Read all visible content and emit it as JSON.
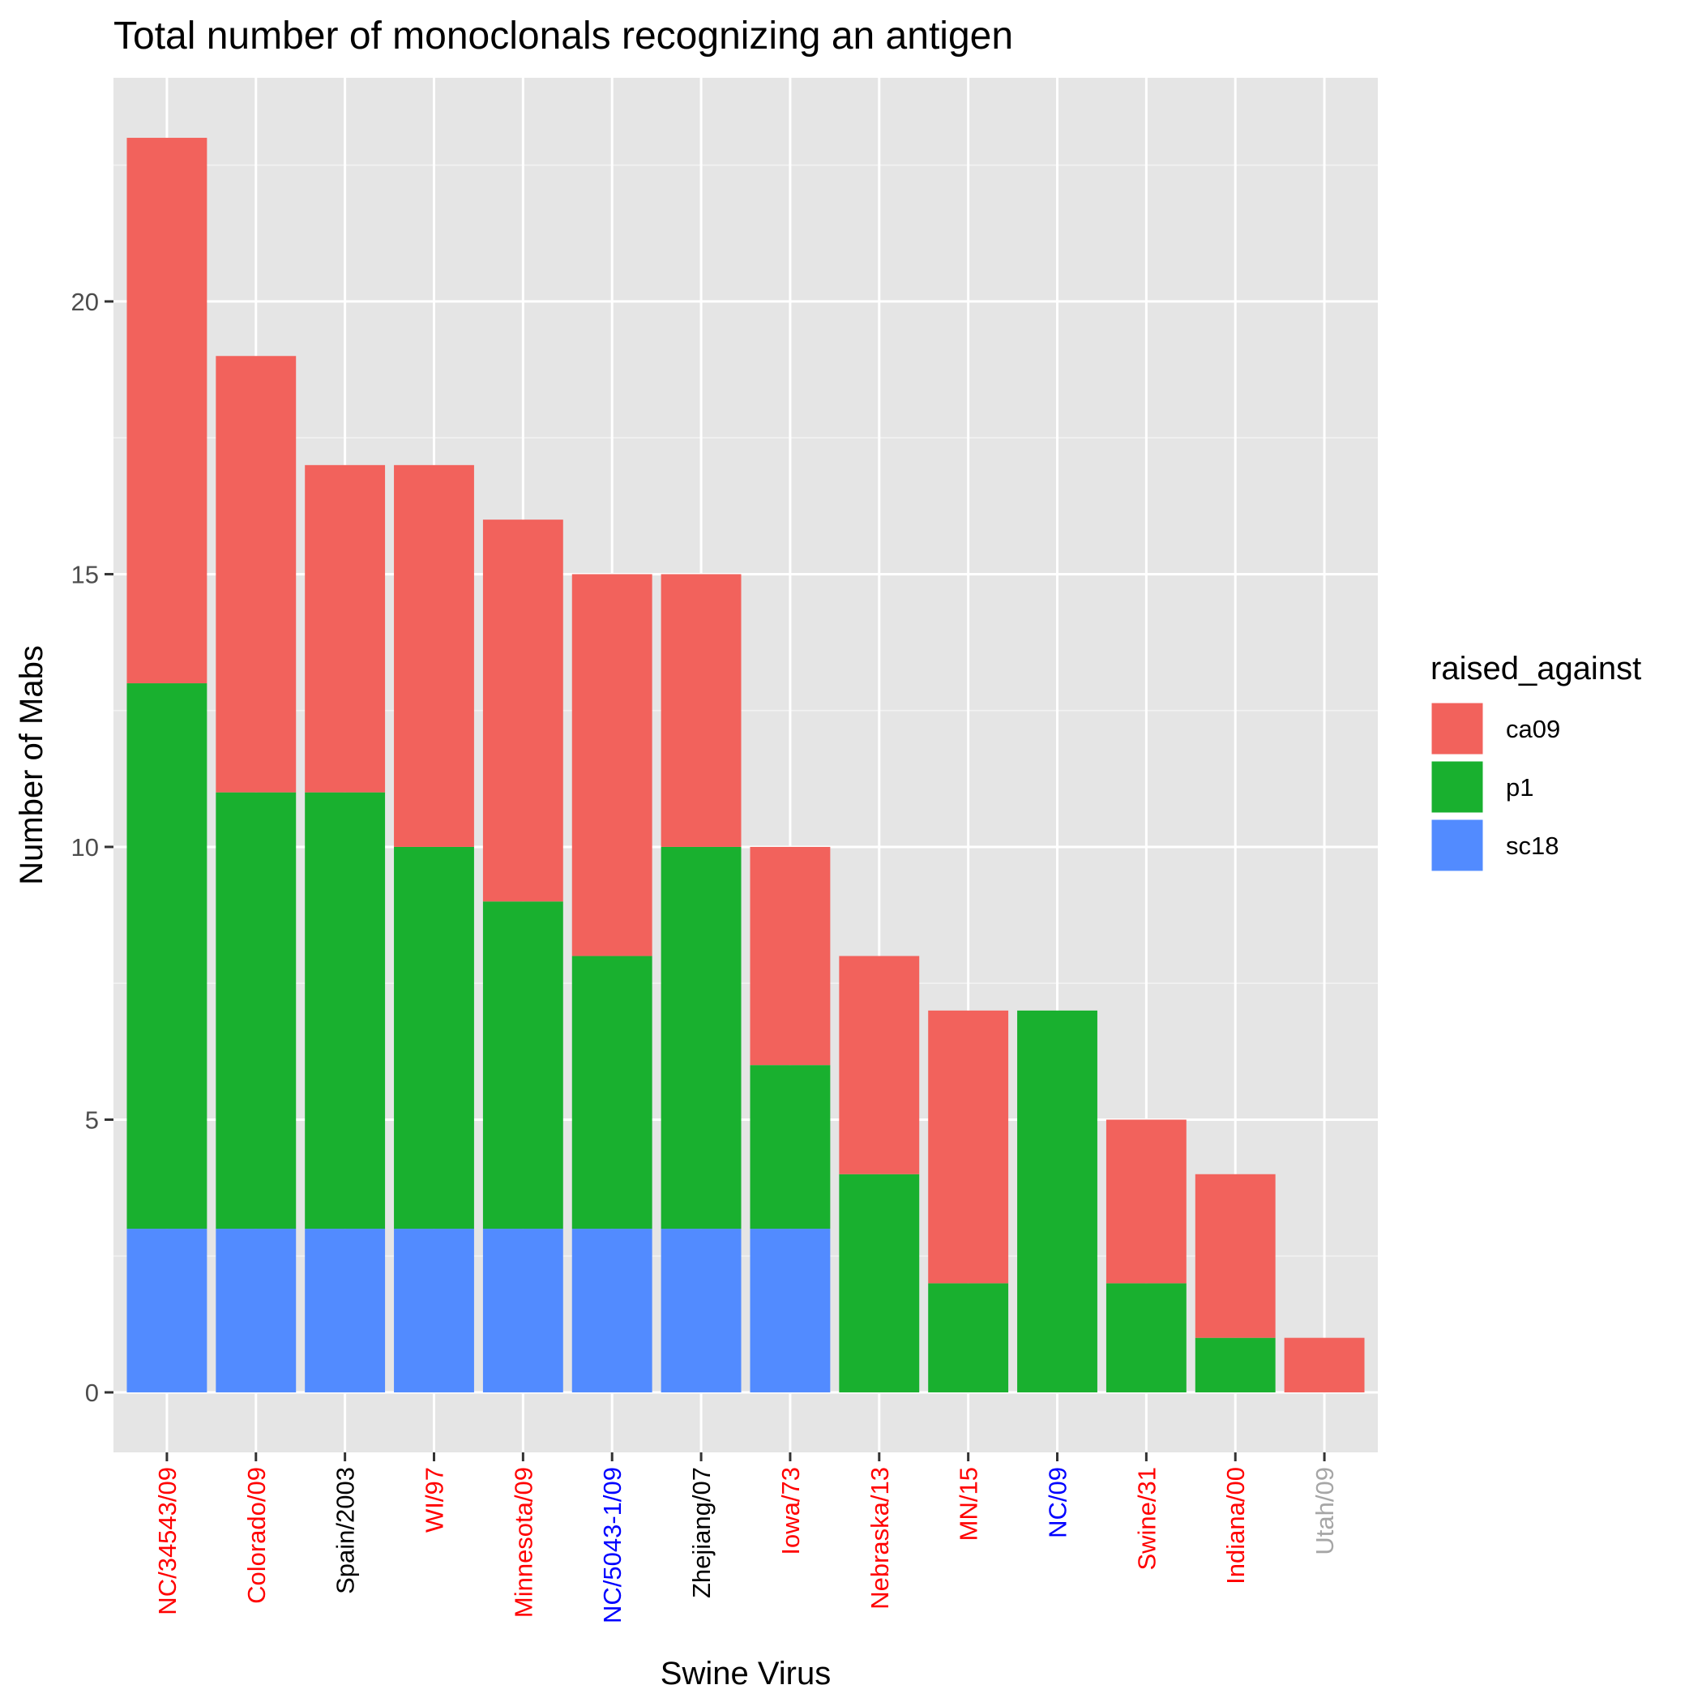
{
  "chart_data": {
    "type": "bar",
    "stacked": true,
    "title": "Total number of monoclonals recognizing an antigen",
    "xlabel": "Swine Virus",
    "ylabel": "Number of Mabs",
    "ylim": [
      -1.1,
      24.1
    ],
    "yticks": [
      0,
      5,
      10,
      15,
      20
    ],
    "grid": true,
    "legend": {
      "title": "raised_against",
      "position": "right"
    },
    "categories": [
      "NC/34543/09",
      "Colorado/09",
      "Spain/2003",
      "WI/97",
      "Minnesota/09",
      "NC/5043-1/09",
      "Zhejiang/07",
      "Iowa/73",
      "Nebraska/13",
      "MN/15",
      "NC/09",
      "Swine/31",
      "Indiana/00",
      "Utah/09"
    ],
    "category_colors": [
      "#ff0000",
      "#ff0000",
      "#000000",
      "#ff0000",
      "#ff0000",
      "#0000ff",
      "#000000",
      "#ff0000",
      "#ff0000",
      "#ff0000",
      "#0000ff",
      "#ff0000",
      "#ff0000",
      "#a6a6a6"
    ],
    "series": [
      {
        "name": "sc18",
        "color": "#528bff",
        "values": [
          3,
          3,
          3,
          3,
          3,
          3,
          3,
          3,
          0,
          0,
          0,
          0,
          0,
          0
        ]
      },
      {
        "name": "p1",
        "color": "#19b02f",
        "values": [
          10,
          8,
          8,
          7,
          6,
          5,
          7,
          3,
          4,
          2,
          7,
          2,
          1,
          0
        ]
      },
      {
        "name": "ca09",
        "color": "#f2625c",
        "values": [
          10,
          8,
          6,
          7,
          7,
          7,
          5,
          4,
          4,
          5,
          0,
          3,
          3,
          1
        ]
      }
    ],
    "legend_order": [
      "ca09",
      "p1",
      "sc18"
    ]
  }
}
